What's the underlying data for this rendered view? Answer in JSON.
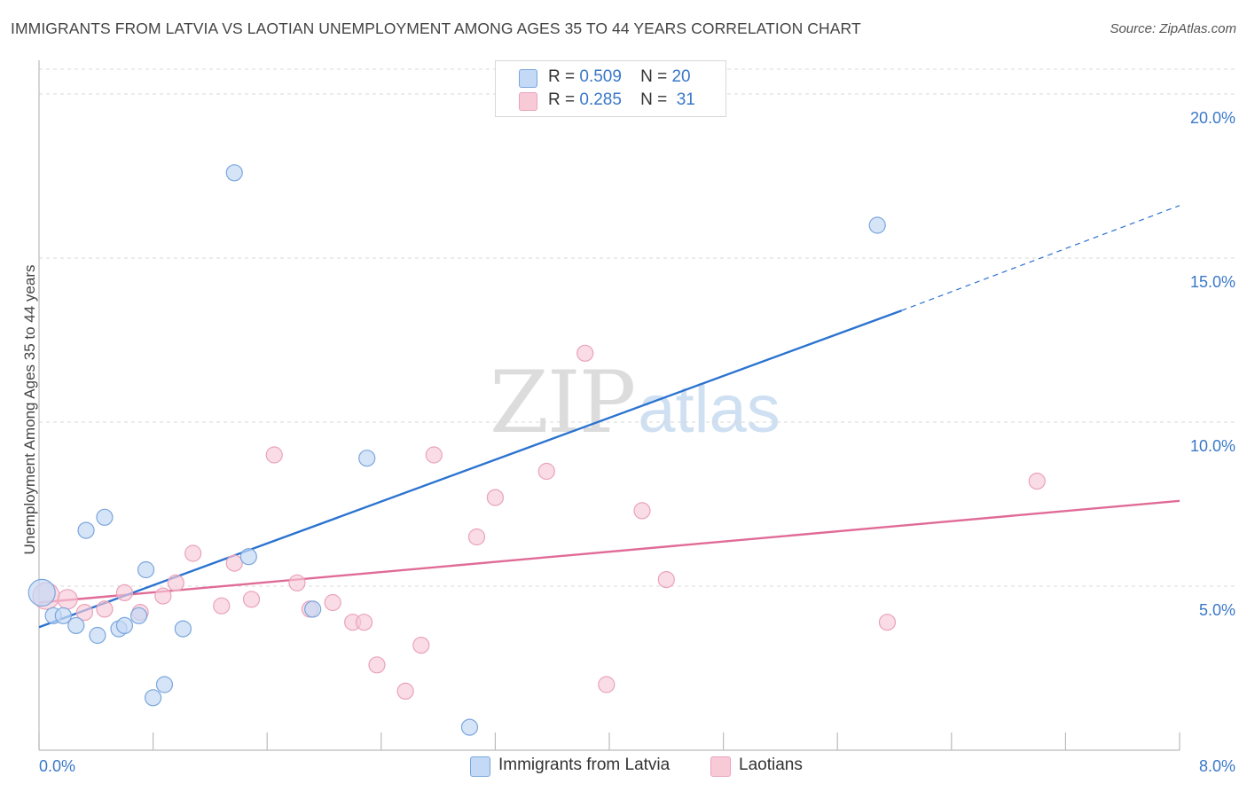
{
  "title": "IMMIGRANTS FROM LATVIA VS LAOTIAN UNEMPLOYMENT AMONG AGES 35 TO 44 YEARS CORRELATION CHART",
  "source": "Source: ZipAtlas.com",
  "watermark": {
    "zip": "ZIP",
    "atlas": "atlas"
  },
  "colors": {
    "blue_fill": "#c4d9f5",
    "blue_stroke": "#7aa6dc",
    "blue_line": "#2b73d0",
    "pink_fill": "#f8cad8",
    "pink_stroke": "#e9a3b8",
    "pink_line": "#e06b96",
    "grid": "#d9d9d9",
    "axis_text": "#3a78c9"
  },
  "legend": {
    "rows": [
      {
        "r_label": "R =",
        "r_value": "0.509",
        "n_label": "N =",
        "n_value": "20",
        "color": "#c4d9f5"
      },
      {
        "r_label": "R =",
        "r_value": "0.285",
        "n_label": "N =",
        "n_value": "31",
        "color": "#f8cad8"
      }
    ]
  },
  "chart_data": {
    "type": "scatter",
    "title": "IMMIGRANTS FROM LATVIA VS LAOTIAN UNEMPLOYMENT AMONG AGES 35 TO 44 YEARS CORRELATION CHART",
    "xlabel": "",
    "ylabel": "Unemployment Among Ages 35 to 44 years",
    "xlim": [
      0,
      8
    ],
    "ylim": [
      0,
      20
    ],
    "x_tick_labels": [
      "0.0%",
      "8.0%"
    ],
    "y_ticks": [
      5,
      10,
      15,
      20
    ],
    "y_tick_labels": [
      "5.0%",
      "10.0%",
      "15.0%",
      "20.0%"
    ],
    "grid": true,
    "legend_position": "bottom",
    "series": [
      {
        "name": "Immigrants from Latvia",
        "color": "#c4d9f5",
        "r": 0.509,
        "n": 20,
        "points": [
          [
            0.02,
            4.8,
            15
          ],
          [
            0.1,
            4.1,
            9
          ],
          [
            0.17,
            4.1,
            9
          ],
          [
            0.26,
            3.8,
            9
          ],
          [
            0.33,
            6.7,
            9
          ],
          [
            0.41,
            3.5,
            9
          ],
          [
            0.46,
            7.1,
            9
          ],
          [
            0.56,
            3.7,
            9
          ],
          [
            0.6,
            3.8,
            9
          ],
          [
            0.7,
            4.1,
            9
          ],
          [
            0.75,
            5.5,
            9
          ],
          [
            0.8,
            1.6,
            9
          ],
          [
            0.88,
            2.0,
            9
          ],
          [
            1.01,
            3.7,
            9
          ],
          [
            1.37,
            17.6,
            9
          ],
          [
            1.47,
            5.9,
            9
          ],
          [
            1.92,
            4.3,
            9
          ],
          [
            2.3,
            8.9,
            9
          ],
          [
            3.02,
            0.7,
            9
          ],
          [
            5.88,
            16.0,
            9
          ]
        ],
        "trend": {
          "x": [
            0,
            6.05
          ],
          "y": [
            3.75,
            13.4
          ]
        },
        "trend_dashed": {
          "x": [
            6.05,
            8.0
          ],
          "y": [
            13.4,
            16.6
          ]
        }
      },
      {
        "name": "Laotians",
        "color": "#f8cad8",
        "r": 0.285,
        "n": 31,
        "points": [
          [
            0.05,
            4.7,
            15
          ],
          [
            0.2,
            4.6,
            11
          ],
          [
            0.32,
            4.2,
            9
          ],
          [
            0.46,
            4.3,
            9
          ],
          [
            0.6,
            4.8,
            9
          ],
          [
            0.71,
            4.2,
            9
          ],
          [
            0.87,
            4.7,
            9
          ],
          [
            0.96,
            5.1,
            9
          ],
          [
            1.08,
            6.0,
            9
          ],
          [
            1.28,
            4.4,
            9
          ],
          [
            1.37,
            5.7,
            9
          ],
          [
            1.49,
            4.6,
            9
          ],
          [
            1.65,
            9.0,
            9
          ],
          [
            1.81,
            5.1,
            9
          ],
          [
            1.9,
            4.3,
            9
          ],
          [
            2.06,
            4.5,
            9
          ],
          [
            2.2,
            3.9,
            9
          ],
          [
            2.28,
            3.9,
            9
          ],
          [
            2.37,
            2.6,
            9
          ],
          [
            2.57,
            1.8,
            9
          ],
          [
            2.68,
            3.2,
            9
          ],
          [
            2.77,
            9.0,
            9
          ],
          [
            3.07,
            6.5,
            9
          ],
          [
            3.2,
            7.7,
            9
          ],
          [
            3.56,
            8.5,
            9
          ],
          [
            3.83,
            12.1,
            9
          ],
          [
            3.98,
            2.0,
            9
          ],
          [
            4.23,
            7.3,
            9
          ],
          [
            4.4,
            5.2,
            9
          ],
          [
            5.95,
            3.9,
            9
          ],
          [
            7.0,
            8.2,
            9
          ]
        ],
        "trend": {
          "x": [
            0,
            8.0
          ],
          "y": [
            4.5,
            7.6
          ]
        }
      }
    ]
  }
}
